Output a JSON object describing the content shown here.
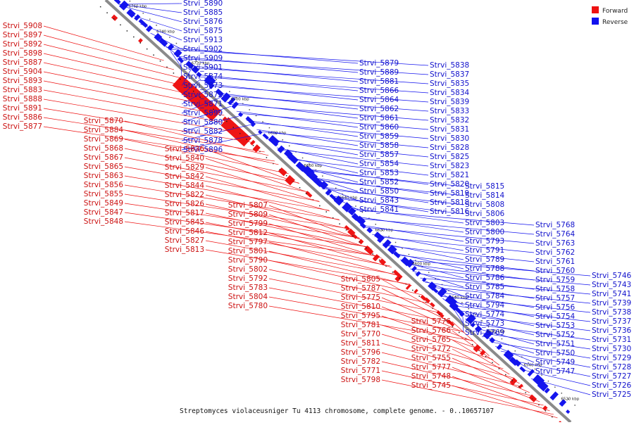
{
  "legend": [
    {
      "label": "Forward",
      "color": "#ee1111"
    },
    {
      "label": "Reverse",
      "color": "#1111ee"
    }
  ],
  "caption": "Streptomyces violaceusniger Tu 4113 chromosome, complete genome. - 0..10657107",
  "ticks": [
    "6520 kbp",
    "6540 kbp",
    "6560 kbp",
    "6580 kbp",
    "6600 kbp",
    "6620 kbp",
    "6640 kbp",
    "6660 kbp",
    "6680 kbp",
    "6700 kbp",
    "6720 kbp",
    "6740 kbp",
    "6760 kbp"
  ],
  "reverse_labels": [
    "Strvi_5890",
    "Strvi_5885",
    "Strvi_5876",
    "Strvi_5875",
    "Strvi_5913",
    "Strvi_5902",
    "Strvi_5909",
    "Strvi_5901",
    "Strvi_5874",
    "Strvi_5873",
    "Strvi_5872",
    "Strvi_5871",
    "Strvi_5899",
    "Strvi_5880",
    "Strvi_5882",
    "Strvi_5878",
    "Strvi_5896",
    "Strvi_5879",
    "Strvi_5889",
    "Strvi_5881",
    "Strvi_5866",
    "Strvi_5864",
    "Strvi_5862",
    "Strvi_5861",
    "Strvi_5860",
    "Strvi_5859",
    "Strvi_5858",
    "Strvi_5857",
    "Strvi_5854",
    "Strvi_5853",
    "Strvi_5852",
    "Strvi_5850",
    "Strvi_5843",
    "Strvi_5841",
    "Strvi_5838",
    "Strvi_5837",
    "Strvi_5835",
    "Strvi_5834",
    "Strvi_5839",
    "Strvi_5833",
    "Strvi_5832",
    "Strvi_5831",
    "Strvi_5830",
    "Strvi_5828",
    "Strvi_5825",
    "Strvi_5823",
    "Strvi_5821",
    "Strvi_5820",
    "Strvi_5819",
    "Strvi_5818",
    "Strvi_5816",
    "Strvi_5815",
    "Strvi_5814",
    "Strvi_5808",
    "Strvi_5806",
    "Strvi_5803",
    "Strvi_5800",
    "Strvi_5793",
    "Strvi_5791",
    "Strvi_5789",
    "Strvi_5788",
    "Strvi_5786",
    "Strvi_5785",
    "Strvi_5784",
    "Strvi_5794",
    "Strvi_5774",
    "Strvi_5773",
    "Strvi_5769",
    "Strvi_5768",
    "Strvi_5764",
    "Strvi_5763",
    "Strvi_5762",
    "Strvi_5761",
    "Strvi_5760",
    "Strvi_5759",
    "Strvi_5758",
    "Strvi_5757",
    "Strvi_5756",
    "Strvi_5754",
    "Strvi_5753",
    "Strvi_5752",
    "Strvi_5751",
    "Strvi_5750",
    "Strvi_5749",
    "Strvi_5747",
    "Strvi_5746",
    "Strvi_5743",
    "Strvi_5741",
    "Strvi_5739",
    "Strvi_5738",
    "Strvi_5737",
    "Strvi_5736",
    "Strvi_5731",
    "Strvi_5730",
    "Strvi_5729",
    "Strvi_5728",
    "Strvi_5727",
    "Strvi_5726",
    "Strvi_5725"
  ],
  "forward_labels": [
    "Strvi_5908",
    "Strvi_5897",
    "Strvi_5892",
    "Strvi_5898",
    "Strvi_5887",
    "Strvi_5904",
    "Strvi_5893",
    "Strvi_5883",
    "Strvi_5888",
    "Strvi_5891",
    "Strvi_5886",
    "Strvi_5877",
    "Strvi_5870",
    "Strvi_5884",
    "Strvi_5869",
    "Strvi_5868",
    "Strvi_5867",
    "Strvi_5865",
    "Strvi_5863",
    "Strvi_5856",
    "Strvi_5855",
    "Strvi_5849",
    "Strvi_5847",
    "Strvi_5848",
    "Strvi_5836",
    "Strvi_5840",
    "Strvi_5829",
    "Strvi_5842",
    "Strvi_5844",
    "Strvi_5822",
    "Strvi_5826",
    "Strvi_5817",
    "Strvi_5845",
    "Strvi_5846",
    "Strvi_5827",
    "Strvi_5813",
    "Strvi_5807",
    "Strvi_5809",
    "Strvi_5799",
    "Strvi_5812",
    "Strvi_5797",
    "Strvi_5801",
    "Strvi_5790",
    "Strvi_5802",
    "Strvi_5792",
    "Strvi_5783",
    "Strvi_5804",
    "Strvi_5780",
    "Strvi_5805",
    "Strvi_5787",
    "Strvi_5775",
    "Strvi_5810",
    "Strvi_5795",
    "Strvi_5781",
    "Strvi_5770",
    "Strvi_5811",
    "Strvi_5796",
    "Strvi_5782",
    "Strvi_5771",
    "Strvi_5798",
    "Strvi_5776",
    "Strvi_5766",
    "Strvi_5765",
    "Strvi_5772",
    "Strvi_5755",
    "Strvi_5777",
    "Strvi_5748",
    "Strvi_5745"
  ]
}
